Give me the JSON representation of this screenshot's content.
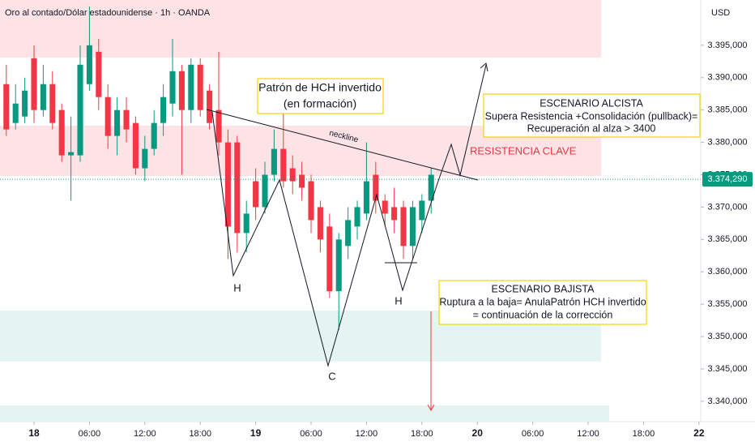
{
  "chart_data": {
    "type": "candlestick",
    "title": "Oro al contado/Dólar estadounidense · 1h · OANDA",
    "y_axis_label": "USD",
    "x": [
      -3,
      -2,
      -1,
      0,
      1,
      2,
      3,
      4,
      5,
      6,
      7,
      8,
      9,
      10,
      11,
      12,
      13,
      14,
      15,
      16,
      17,
      18,
      19,
      20,
      21,
      22,
      23,
      24,
      25,
      26,
      27,
      28,
      29,
      30,
      31,
      32,
      33,
      34,
      35,
      36,
      37,
      38,
      39,
      40,
      41,
      42,
      43
    ],
    "open": [
      3389,
      3383,
      3384,
      3393,
      3385,
      3389,
      3385,
      3378,
      3378,
      3389,
      3394,
      3387,
      3381,
      3385,
      3383,
      3376,
      3379,
      3383,
      3386,
      3391,
      3385,
      3392,
      3388,
      3385,
      3380,
      3380,
      3366,
      3374,
      3370,
      3375,
      3379,
      3376,
      3375,
      3374,
      3370,
      3367,
      3357,
      3364,
      3367,
      3369,
      3375,
      3371,
      3370,
      3370,
      3364,
      3368,
      3371
    ],
    "high": [
      3392,
      3389,
      3390,
      3395,
      3392,
      3391,
      3386,
      3384,
      3395,
      3401,
      3396,
      3389,
      3387,
      3387,
      3384,
      3381,
      3385,
      3389,
      3396,
      3392,
      3393,
      3393,
      3389,
      3394,
      3382,
      3381,
      3371,
      3376,
      3377,
      3382,
      3386,
      3378,
      3377,
      3375,
      3371,
      3369,
      3366,
      3370,
      3371,
      3380,
      3377,
      3372,
      3373,
      3371,
      3371,
      3372,
      3376
    ],
    "low": [
      3381,
      3382,
      3383,
      3383,
      3384,
      3382,
      3377,
      3371,
      3377,
      3388,
      3385,
      3379,
      3378,
      3380,
      3375,
      3374,
      3378,
      3381,
      3384,
      3375,
      3383,
      3384,
      3382,
      3378,
      3362,
      3363,
      3363,
      3368,
      3369,
      3374,
      3373,
      3372,
      3371,
      3366,
      3363,
      3356,
      3351,
      3362,
      3365,
      3368,
      3369,
      3367,
      3366,
      3362,
      3362,
      3366,
      3369
    ],
    "close": [
      3382,
      3386,
      3388,
      3385,
      3389,
      3383,
      3378,
      3378.5,
      3392,
      3395,
      3387,
      3381,
      3385,
      3382,
      3376,
      3379,
      3383,
      3387,
      3391,
      3385,
      3392,
      3385,
      3383,
      3380,
      3367,
      3366,
      3369,
      3370,
      3375,
      3379,
      3374,
      3374,
      3373,
      3368,
      3365,
      3357,
      3365,
      3368,
      3370,
      3374,
      3371,
      3369,
      3368,
      3364,
      3370,
      3371,
      3375
    ],
    "up_color": "#089981",
    "down_color": "#f23645",
    "ylim": [
      3336.85,
      3402.0
    ],
    "yticks": [
      {
        "value": 3395,
        "label": "3.395,000"
      },
      {
        "value": 3390,
        "label": "3.390,000"
      },
      {
        "value": 3385,
        "label": "3.385,000"
      },
      {
        "value": 3380,
        "label": "3.380,000"
      },
      {
        "value": 3375,
        "label": "3.375,000"
      },
      {
        "value": 3370,
        "label": "3.370,000"
      },
      {
        "value": 3365,
        "label": "3.365,000"
      },
      {
        "value": 3360,
        "label": "3.360,000"
      },
      {
        "value": 3355,
        "label": "3.355,000"
      },
      {
        "value": 3350,
        "label": "3.350,000"
      },
      {
        "value": 3345,
        "label": "3.345,000"
      },
      {
        "value": 3340,
        "label": "3.340,000"
      }
    ],
    "xlim": [
      -3.684,
      72.19
    ],
    "xticks": [
      {
        "value": 0,
        "label": "18"
      },
      {
        "value": 6,
        "label": "06:00"
      },
      {
        "value": 12,
        "label": "12:00"
      },
      {
        "value": 18,
        "label": "18:00"
      },
      {
        "value": 24,
        "label": "19"
      },
      {
        "value": 30,
        "label": "06:00"
      },
      {
        "value": 36,
        "label": "12:00"
      },
      {
        "value": 42,
        "label": "18:00"
      },
      {
        "value": 48,
        "label": "20"
      },
      {
        "value": 54,
        "label": "06:00"
      },
      {
        "value": 60,
        "label": "12:00"
      },
      {
        "value": 66,
        "label": "18:00"
      },
      {
        "value": 72,
        "label": "22"
      }
    ],
    "last_price": {
      "value": 3374.29,
      "label": "3.374,290"
    },
    "grid": false,
    "annotations": {
      "pattern_title": "Patrón de HCH invertido",
      "pattern_subtitle": "(en formación)",
      "neckline": "neckline",
      "resistance": "RESISTENCIA CLAVE",
      "bull_title": "ESCENARIO ALCISTA",
      "bull_line1": "Supera Resistencia +Consolidación (pullback)=",
      "bull_line2": "Recuperación al alza > 3400",
      "bear_title": "ESCENARIO BAJISTA",
      "bear_line1": "Ruptura a la baja= AnulaPatrón HCH invertido",
      "bear_line2": "= continuación de la corrección",
      "left_shoulder": "H",
      "head": "C",
      "right_shoulder": "H"
    }
  }
}
